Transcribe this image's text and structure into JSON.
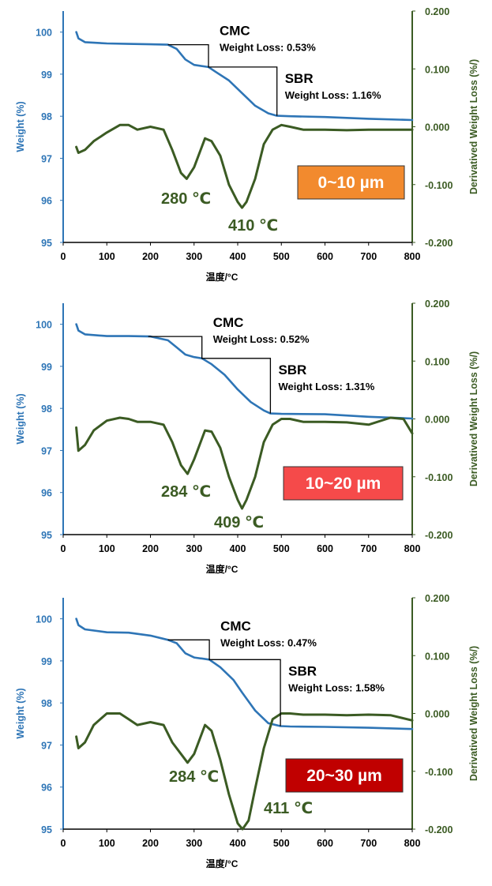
{
  "colors": {
    "weight": "#2E75B6",
    "deriv": "#3B5B23",
    "axis": "#000000",
    "badge1": "#F28A2E",
    "badge2": "#F54A4A",
    "badge3": "#C00000",
    "badge_text": "#FFFFFF"
  },
  "chart_data": [
    {
      "type": "line",
      "panel": "0~10 µm",
      "xlabel": "温度/°C",
      "ylabel_left": "Weight (%)",
      "ylabel_right": "Derivatived Weight Loss (%/)",
      "xlim": [
        0,
        800
      ],
      "ylim_left": [
        95,
        100.5
      ],
      "ylim_right": [
        -0.2,
        0.2
      ],
      "x_ticks": [
        "0",
        "100",
        "200",
        "300",
        "400",
        "500",
        "600",
        "700",
        "800"
      ],
      "y_left_ticks": [
        "95",
        "96",
        "97",
        "98",
        "99",
        "100"
      ],
      "y_right_ticks": [
        "-0.200",
        "-0.100",
        "0.000",
        "0.100",
        "0.200"
      ],
      "badge": "0~10 µm",
      "annotations": {
        "cmc_title": "CMC",
        "cmc_loss": "Weight Loss: 0.53%",
        "sbr_title": "SBR",
        "sbr_loss": "Weight Loss: 1.16%",
        "peak1": "280 ℃",
        "peak2": "410 ℃"
      },
      "steps": {
        "start_x": 240,
        "mid_x": 333,
        "end_x": 490,
        "level1": 99.7,
        "level2": 99.17,
        "level3": 98.01
      },
      "series": [
        {
          "name": "Weight",
          "axis": "left",
          "x": [
            30,
            35,
            50,
            100,
            150,
            200,
            240,
            260,
            280,
            300,
            333,
            350,
            380,
            410,
            440,
            470,
            490,
            520,
            600,
            700,
            800
          ],
          "y": [
            100.0,
            99.85,
            99.76,
            99.73,
            99.72,
            99.71,
            99.7,
            99.6,
            99.35,
            99.22,
            99.17,
            99.05,
            98.85,
            98.55,
            98.25,
            98.07,
            98.01,
            98.0,
            97.98,
            97.94,
            97.91
          ]
        },
        {
          "name": "Derivative",
          "axis": "right",
          "x": [
            30,
            35,
            50,
            70,
            100,
            130,
            150,
            170,
            200,
            230,
            250,
            270,
            283,
            300,
            325,
            340,
            360,
            380,
            400,
            410,
            420,
            440,
            460,
            480,
            500,
            520,
            550,
            600,
            650,
            700,
            750,
            800
          ],
          "y": [
            -0.035,
            -0.045,
            -0.04,
            -0.025,
            -0.01,
            0.003,
            0.003,
            -0.005,
            0.0,
            -0.005,
            -0.04,
            -0.08,
            -0.09,
            -0.07,
            -0.02,
            -0.025,
            -0.05,
            -0.1,
            -0.13,
            -0.14,
            -0.13,
            -0.09,
            -0.03,
            -0.005,
            0.003,
            0.0,
            -0.005,
            -0.005,
            -0.006,
            -0.005,
            -0.005,
            -0.005
          ]
        }
      ]
    },
    {
      "type": "line",
      "panel": "10~20 µm",
      "xlabel": "温度/°C",
      "ylabel_left": "Weight (%)",
      "ylabel_right": "Derivatived Weight Loss (%/)",
      "xlim": [
        0,
        800
      ],
      "ylim_left": [
        95,
        100.5
      ],
      "ylim_right": [
        -0.2,
        0.2
      ],
      "x_ticks": [
        "0",
        "100",
        "200",
        "300",
        "400",
        "500",
        "600",
        "700",
        "800"
      ],
      "y_left_ticks": [
        "95",
        "96",
        "97",
        "98",
        "99",
        "100"
      ],
      "y_right_ticks": [
        "-0.200",
        "-0.100",
        "0.000",
        "0.100",
        "0.200"
      ],
      "badge": "10~20 µm",
      "annotations": {
        "cmc_title": "CMC",
        "cmc_loss": "Weight Loss: 0.52%",
        "sbr_title": "SBR",
        "sbr_loss": "Weight Loss: 1.31%",
        "peak1": "284 ℃",
        "peak2": "409 ℃"
      },
      "steps": {
        "start_x": 195,
        "mid_x": 318,
        "end_x": 475,
        "level1": 99.71,
        "level2": 99.19,
        "level3": 97.88
      },
      "series": [
        {
          "name": "Weight",
          "axis": "left",
          "x": [
            30,
            35,
            50,
            100,
            150,
            200,
            240,
            260,
            280,
            300,
            318,
            340,
            370,
            400,
            430,
            460,
            475,
            500,
            600,
            700,
            800
          ],
          "y": [
            100.0,
            99.85,
            99.76,
            99.72,
            99.72,
            99.71,
            99.62,
            99.45,
            99.28,
            99.22,
            99.19,
            99.05,
            98.8,
            98.45,
            98.15,
            97.95,
            97.88,
            97.87,
            97.86,
            97.8,
            97.76
          ]
        },
        {
          "name": "Derivative",
          "axis": "right",
          "x": [
            30,
            35,
            50,
            70,
            100,
            130,
            150,
            170,
            200,
            230,
            250,
            270,
            285,
            300,
            325,
            340,
            360,
            380,
            400,
            410,
            420,
            440,
            460,
            480,
            500,
            520,
            550,
            600,
            650,
            700,
            750,
            780,
            800
          ],
          "y": [
            -0.015,
            -0.055,
            -0.045,
            -0.02,
            -0.003,
            0.002,
            0.0,
            -0.005,
            -0.005,
            -0.01,
            -0.04,
            -0.08,
            -0.095,
            -0.07,
            -0.02,
            -0.022,
            -0.05,
            -0.1,
            -0.14,
            -0.155,
            -0.14,
            -0.1,
            -0.04,
            -0.01,
            0.0,
            0.0,
            -0.005,
            -0.005,
            -0.006,
            -0.01,
            0.002,
            0.0,
            -0.025
          ]
        }
      ]
    },
    {
      "type": "line",
      "panel": "20~30 µm",
      "xlabel": "温度/°C",
      "ylabel_left": "Weight (%)",
      "ylabel_right": "Derivatived Weight Loss (%/)",
      "xlim": [
        0,
        800
      ],
      "ylim_left": [
        95,
        100.5
      ],
      "ylim_right": [
        -0.2,
        0.2
      ],
      "x_ticks": [
        "0",
        "100",
        "200",
        "300",
        "400",
        "500",
        "600",
        "700",
        "800"
      ],
      "y_left_ticks": [
        "95",
        "96",
        "97",
        "98",
        "99",
        "100"
      ],
      "y_right_ticks": [
        "-0.200",
        "-0.100",
        "0.000",
        "0.100",
        "0.200"
      ],
      "badge": "20~30 µm",
      "annotations": {
        "cmc_title": "CMC",
        "cmc_loss": "Weight Loss: 0.47%",
        "sbr_title": "SBR",
        "sbr_loss": "Weight Loss: 1.58%",
        "peak1": "284 ℃",
        "peak2": "411 ℃"
      },
      "steps": {
        "start_x": 240,
        "mid_x": 335,
        "end_x": 498,
        "level1": 99.5,
        "level2": 99.03,
        "level3": 97.45
      },
      "series": [
        {
          "name": "Weight",
          "axis": "left",
          "x": [
            30,
            35,
            50,
            100,
            150,
            200,
            240,
            260,
            280,
            300,
            335,
            360,
            390,
            410,
            440,
            470,
            498,
            520,
            600,
            700,
            800
          ],
          "y": [
            100.0,
            99.85,
            99.75,
            99.68,
            99.67,
            99.6,
            99.5,
            99.42,
            99.18,
            99.08,
            99.03,
            98.85,
            98.55,
            98.25,
            97.82,
            97.52,
            97.45,
            97.44,
            97.43,
            97.41,
            97.38
          ]
        },
        {
          "name": "Derivative",
          "axis": "right",
          "x": [
            30,
            35,
            50,
            70,
            100,
            130,
            150,
            170,
            200,
            230,
            250,
            270,
            285,
            300,
            325,
            340,
            360,
            380,
            400,
            411,
            425,
            440,
            460,
            480,
            500,
            520,
            550,
            600,
            650,
            700,
            750,
            800
          ],
          "y": [
            -0.04,
            -0.06,
            -0.05,
            -0.02,
            0.0,
            0.0,
            -0.01,
            -0.02,
            -0.015,
            -0.02,
            -0.05,
            -0.07,
            -0.085,
            -0.07,
            -0.02,
            -0.03,
            -0.08,
            -0.14,
            -0.19,
            -0.2,
            -0.185,
            -0.13,
            -0.06,
            -0.01,
            0.0,
            0.0,
            -0.002,
            -0.002,
            -0.003,
            -0.002,
            -0.003,
            -0.012
          ]
        }
      ]
    }
  ]
}
